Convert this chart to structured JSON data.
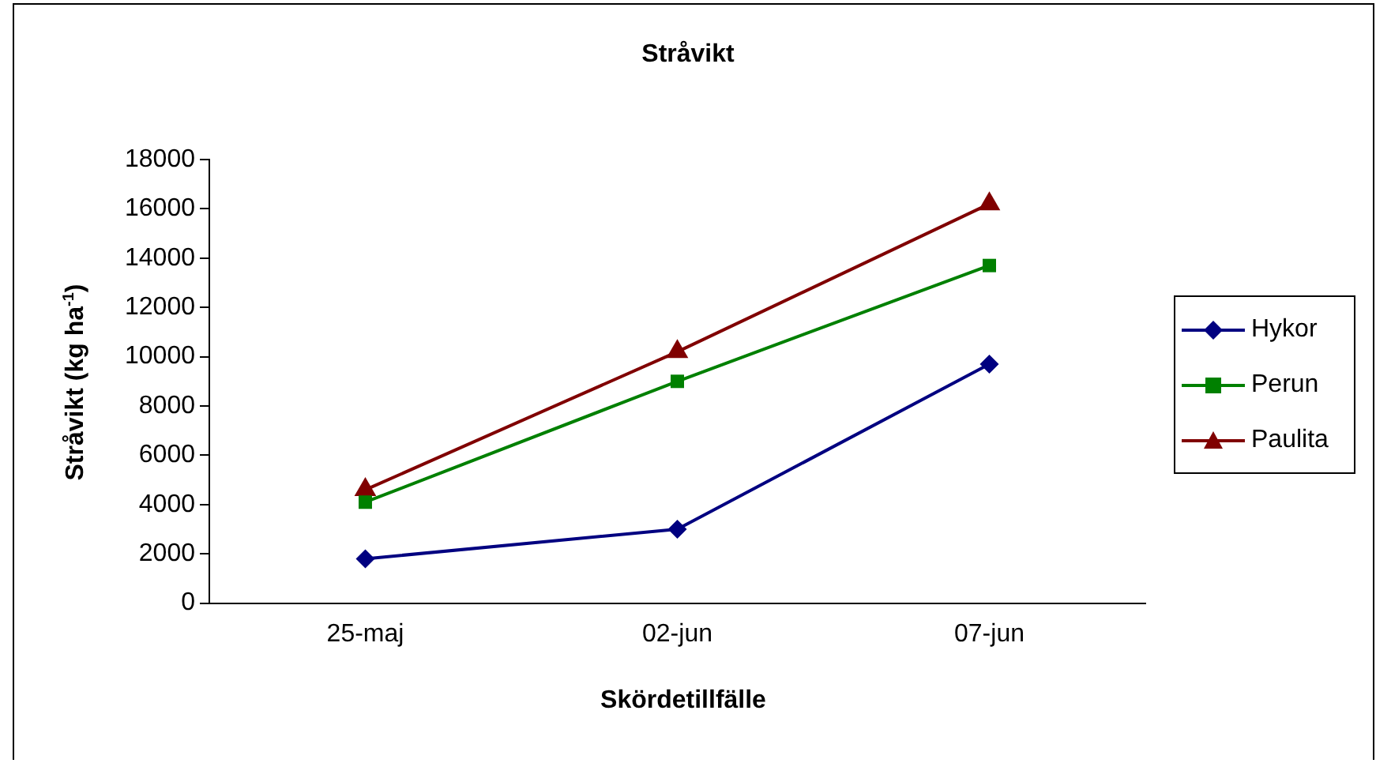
{
  "chart_data": {
    "type": "line",
    "title": "Stråvikt",
    "xlabel": "Skördetillfälle",
    "ylabel": "Stråvikt (kg ha$^{-1}$)",
    "categories": [
      "25-maj",
      "02-jun",
      "07-jun"
    ],
    "series": [
      {
        "name": "Hykor",
        "color": "#000080",
        "marker": "diamond",
        "values": [
          1800,
          3000,
          9700
        ]
      },
      {
        "name": "Perun",
        "color": "#008000",
        "marker": "square",
        "values": [
          4100,
          9000,
          13700
        ]
      },
      {
        "name": "Paulita",
        "color": "#800000",
        "marker": "triangle",
        "values": [
          4600,
          10200,
          16200
        ]
      }
    ],
    "ylim": [
      0,
      18000
    ],
    "yticks": [
      0,
      2000,
      4000,
      6000,
      8000,
      10000,
      12000,
      14000,
      16000,
      18000
    ],
    "grid": false,
    "legend": "right",
    "line_style": "solid"
  }
}
